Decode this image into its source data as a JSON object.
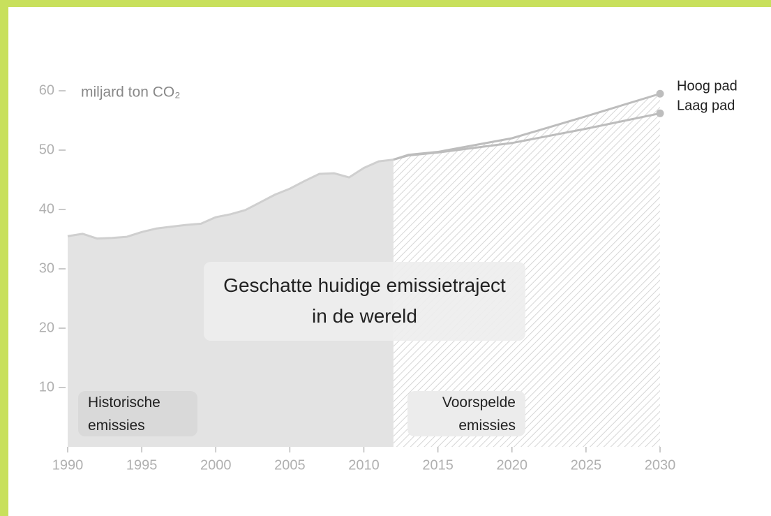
{
  "chart_data": {
    "type": "area",
    "y_label": "miljard ton CO₂",
    "xlim": [
      1990,
      2030
    ],
    "ylim": [
      0,
      60
    ],
    "xticks": [
      1990,
      1995,
      2000,
      2005,
      2010,
      2015,
      2020,
      2025,
      2030
    ],
    "yticks": [
      10,
      20,
      30,
      40,
      50,
      60
    ],
    "series": [
      {
        "name": "Historische emissies",
        "color": "#e3e3e3",
        "line_color": "#cfcfcf",
        "fill": "solid",
        "x": [
          1990,
          1991,
          1992,
          1993,
          1994,
          1995,
          1996,
          1997,
          1998,
          1999,
          2000,
          2001,
          2002,
          2003,
          2004,
          2005,
          2006,
          2007,
          2008,
          2009,
          2010,
          2011,
          2012
        ],
        "values": [
          35.5,
          35.9,
          35.1,
          35.2,
          35.4,
          36.2,
          36.8,
          37.1,
          37.4,
          37.6,
          38.7,
          39.2,
          39.9,
          41.2,
          42.5,
          43.5,
          44.8,
          46.0,
          46.1,
          45.4,
          47.0,
          48.1,
          48.4
        ]
      },
      {
        "name": "Hoog pad",
        "color": "#bdbdbd",
        "fill": "hatch",
        "x": [
          2012,
          2013,
          2015,
          2020,
          2025,
          2030
        ],
        "values": [
          48.4,
          49.2,
          49.7,
          52.0,
          55.7,
          59.5
        ]
      },
      {
        "name": "Laag pad",
        "color": "#bdbdbd",
        "fill": "none",
        "x": [
          2012,
          2013,
          2015,
          2020,
          2025,
          2030
        ],
        "values": [
          48.4,
          49.1,
          49.6,
          51.2,
          53.6,
          56.2
        ]
      }
    ],
    "annotation": "Geschatte huidige emissietraject in de wereld",
    "forecast_label": "Voorspelde emissies"
  }
}
